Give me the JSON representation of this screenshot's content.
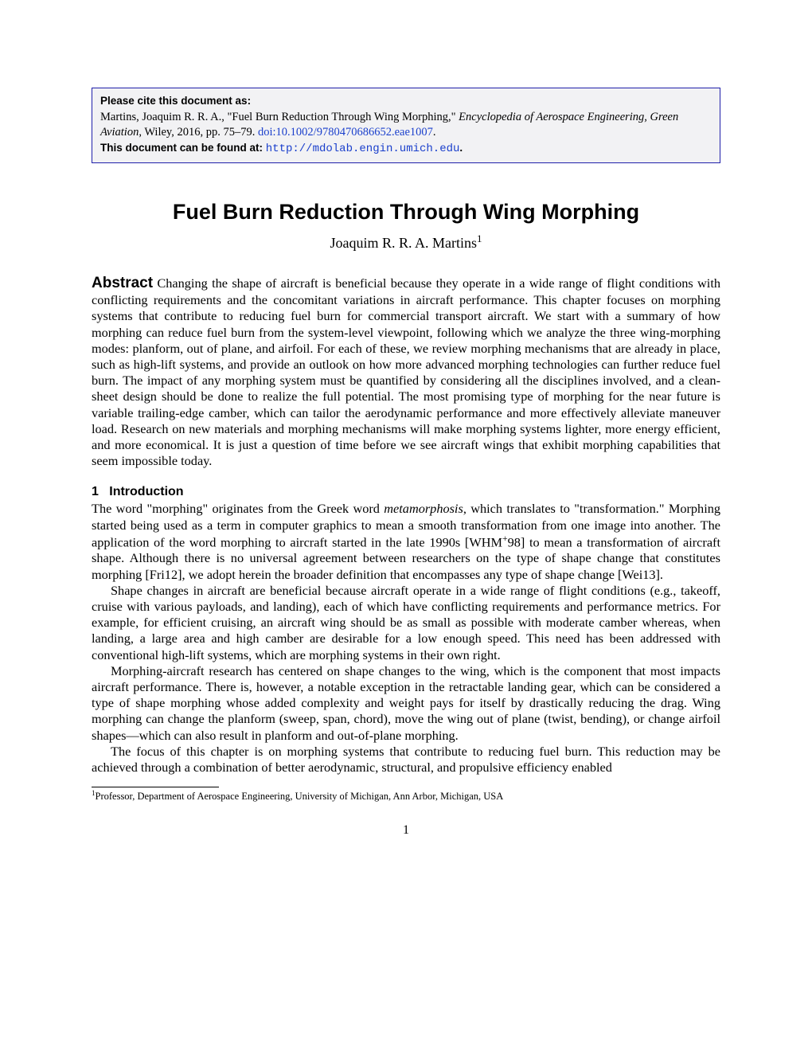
{
  "citebox": {
    "label1": "Please cite this document as:",
    "citation_pre": "Martins, Joaquim R. R. A., \"Fuel Burn Reduction Through Wing Morphing,\" ",
    "citation_italic": "Encyclopedia of Aerospace Engineering, Green Aviation",
    "citation_post": ", Wiley, 2016, pp. 75–79. ",
    "doi": "doi:10.1002/9780470686652.eae1007",
    "doi_end": ".",
    "label2": "This document can be found at: ",
    "url": "http://mdolab.engin.umich.edu",
    "url_end": "."
  },
  "title": "Fuel Burn Reduction Through Wing Morphing",
  "author": "Joaquim R. R. A. Martins",
  "author_sup": "1",
  "abstract": {
    "label": "Abstract",
    "text": "  Changing the shape of aircraft is beneficial because they operate in a wide range of flight conditions with conflicting requirements and the concomitant variations in aircraft performance. This chapter focuses on morphing systems that contribute to reducing fuel burn for commercial transport aircraft. We start with a summary of how morphing can reduce fuel burn from the system-level viewpoint, following which we analyze the three wing-morphing modes: planform, out of plane, and airfoil. For each of these, we review morphing mechanisms that are already in place, such as high-lift systems, and provide an outlook on how more advanced morphing technologies can further reduce fuel burn. The impact of any morphing system must be quantified by considering all the disciplines involved, and a clean-sheet design should be done to realize the full potential. The most promising type of morphing for the near future is variable trailing-edge camber, which can tailor the aerodynamic performance and more effectively alleviate maneuver load. Research on new materials and morphing mechanisms will make morphing systems lighter, more energy efficient, and more economical. It is just a question of time before we see aircraft wings that exhibit morphing capabilities that seem impossible today."
  },
  "section1": {
    "num": "1",
    "title": "Introduction",
    "p1_a": "The word \"morphing\" originates from the Greek word ",
    "p1_italic": "metamorphosis",
    "p1_b": ", which translates to \"transformation.\" Morphing started being used as a term in computer graphics to mean a smooth transformation from one image into another. The application of the word morphing to aircraft started in the late 1990s [WHM",
    "p1_sup": "+",
    "p1_c": "98] to mean a transformation of aircraft shape. Although there is no universal agreement between researchers on the type of shape change that constitutes morphing [Fri12], we adopt herein the broader definition that encompasses any type of shape change [Wei13].",
    "p2": "Shape changes in aircraft are beneficial because aircraft operate in a wide range of flight conditions (e.g., takeoff, cruise with various payloads, and landing), each of which have conflicting requirements and performance metrics. For example, for efficient cruising, an aircraft wing should be as small as possible with moderate camber whereas, when landing, a large area and high camber are desirable for a low enough speed. This need has been addressed with conventional high-lift systems, which are morphing systems in their own right.",
    "p3": "Morphing-aircraft research has centered on shape changes to the wing, which is the component that most impacts aircraft performance. There is, however, a notable exception in the retractable landing gear, which can be considered a type of shape morphing whose added complexity and weight pays for itself by drastically reducing the drag. Wing morphing can change the planform (sweep, span, chord), move the wing out of plane (twist, bending), or change airfoil shapes—which can also result in planform and out-of-plane morphing.",
    "p4": "The focus of this chapter is on morphing systems that contribute to reducing fuel burn. This reduction may be achieved through a combination of better aerodynamic, structural, and propulsive efficiency enabled"
  },
  "footnote": {
    "sup": "1",
    "text": "Professor, Department of Aerospace Engineering, University of Michigan, Ann Arbor, Michigan, USA"
  },
  "page_number": "1"
}
